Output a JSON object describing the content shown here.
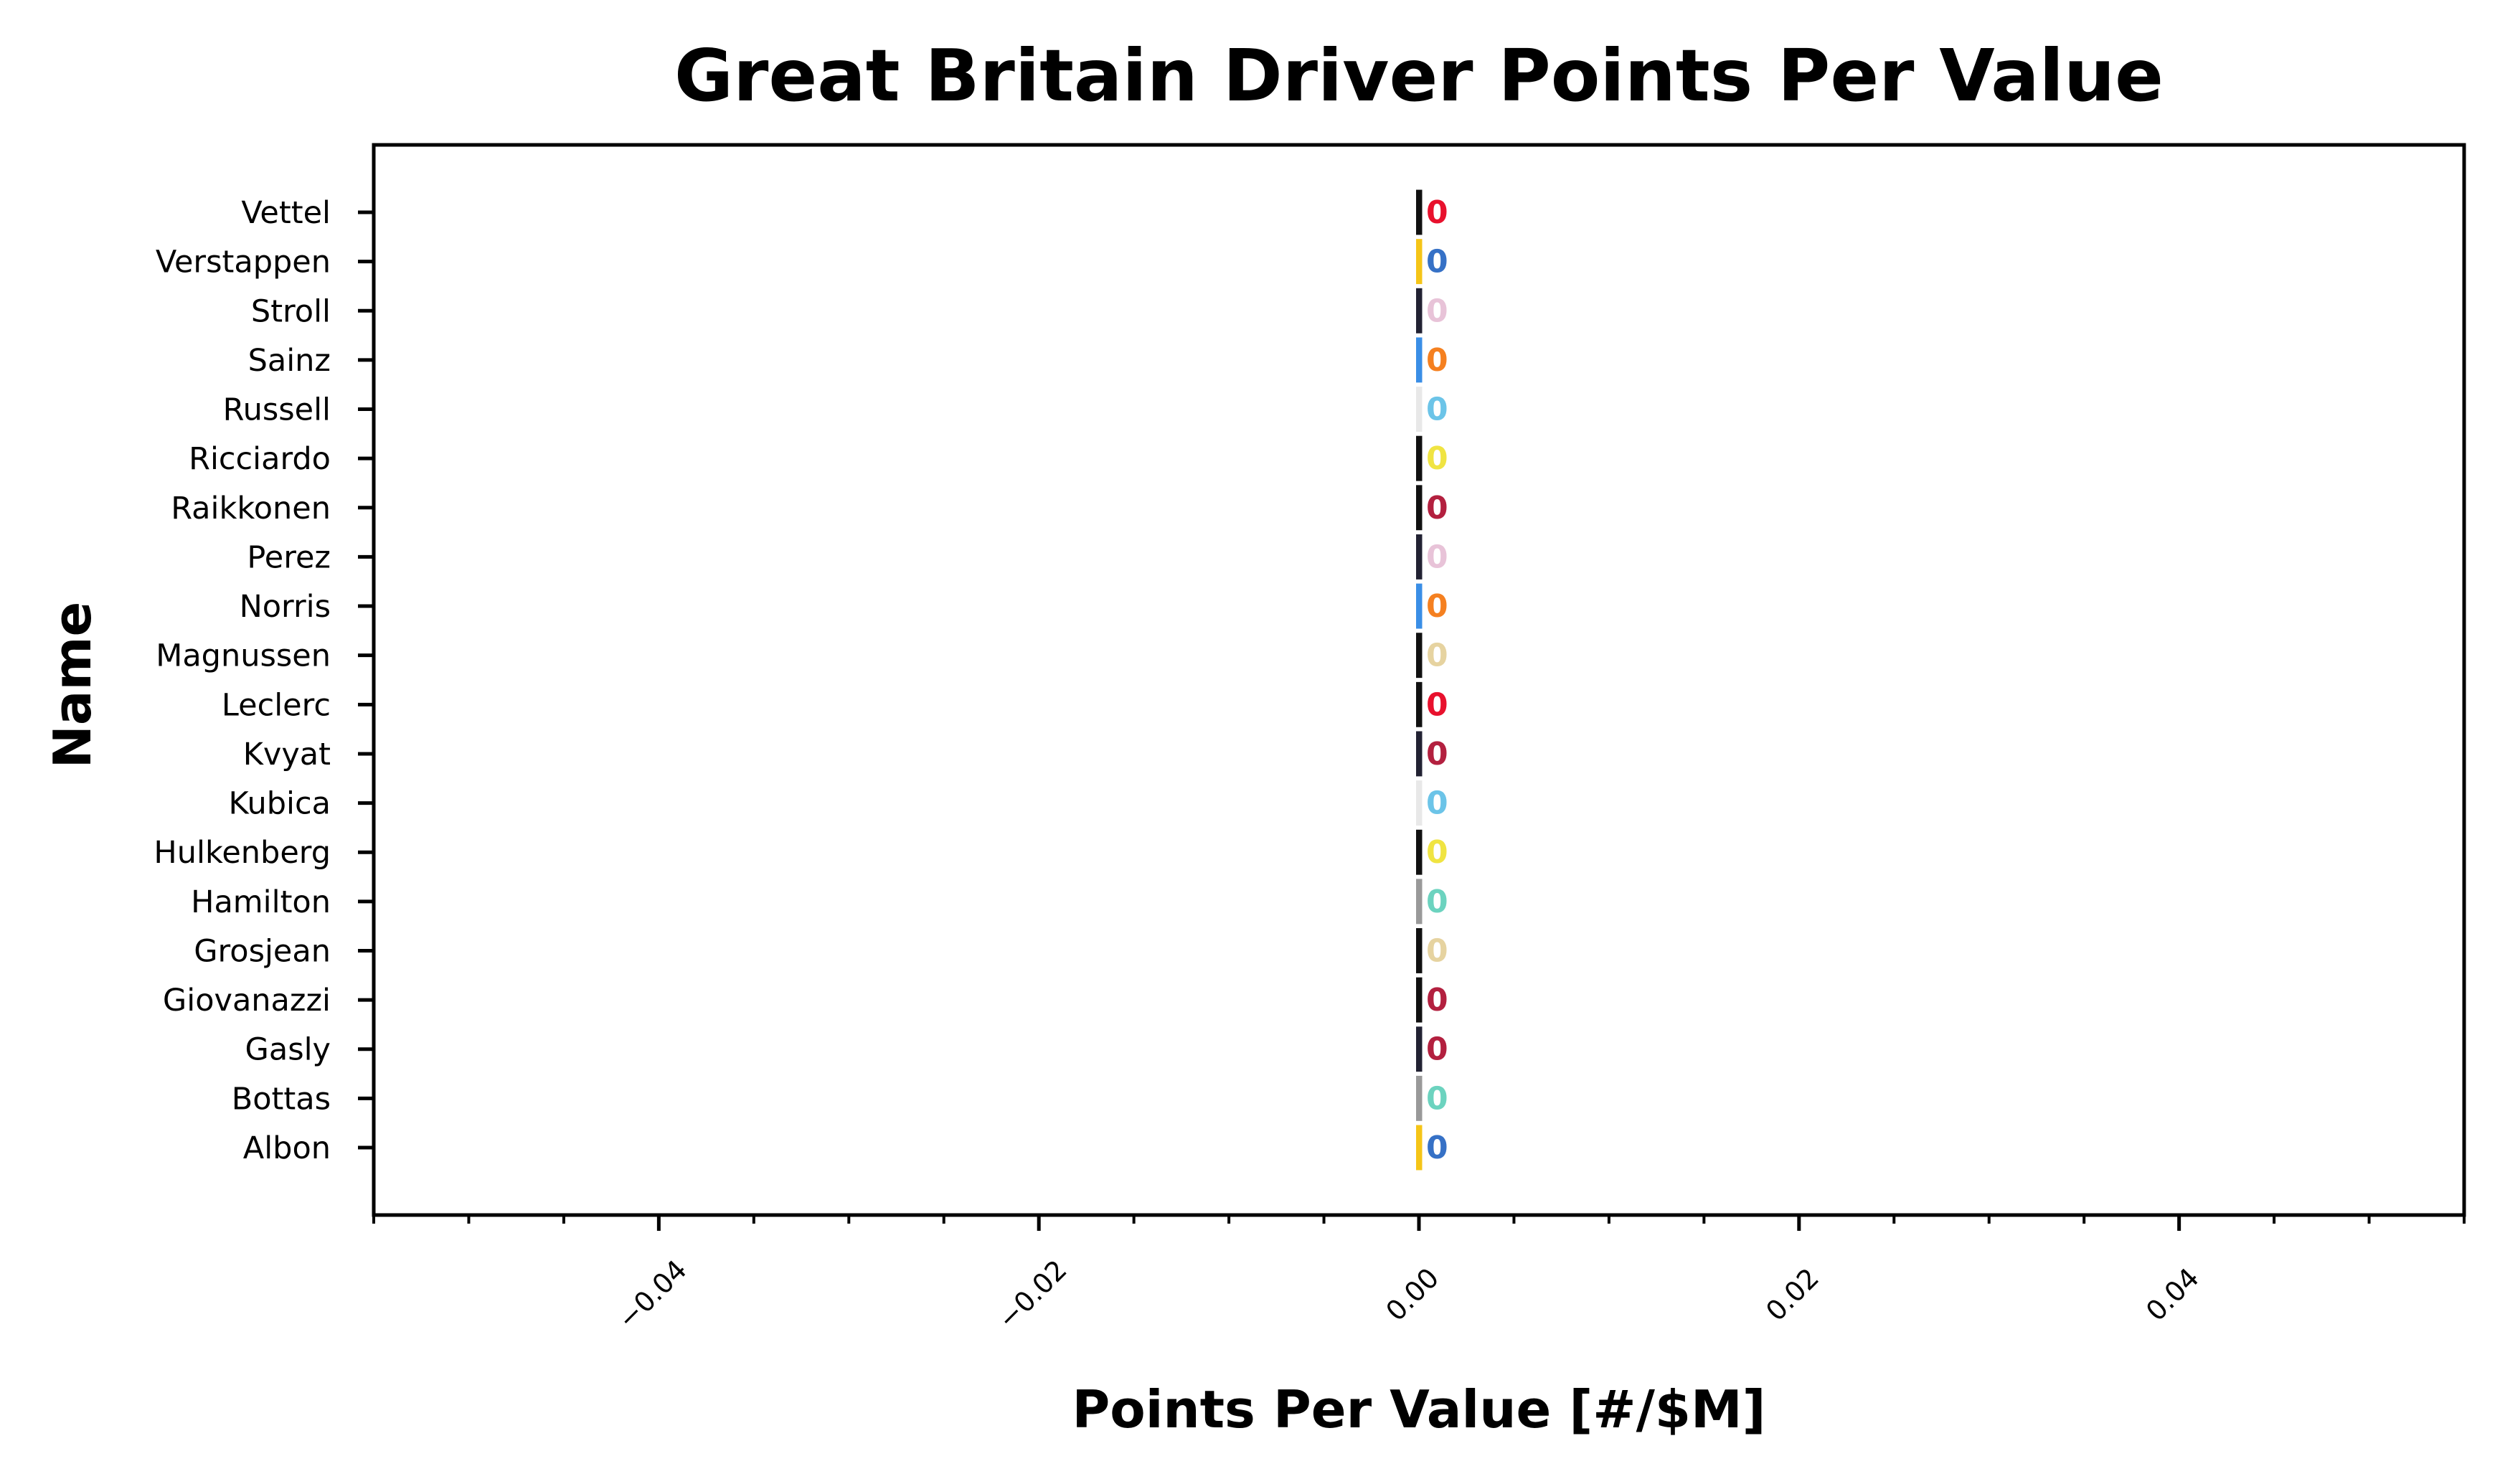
{
  "chart_data": {
    "type": "bar",
    "orientation": "horizontal",
    "title": "Great Britain Driver Points Per Value",
    "xlabel": "Points Per Value [#/$M]",
    "ylabel": "Name",
    "xlim": [
      -0.055,
      0.055
    ],
    "xticks": [
      -0.04,
      -0.02,
      0.0,
      0.02,
      0.04
    ],
    "xtick_labels": [
      "−0.04",
      "−0.02",
      "0.00",
      "0.02",
      "0.04"
    ],
    "grid": false,
    "categories": [
      "Vettel",
      "Verstappen",
      "Stroll",
      "Sainz",
      "Russell",
      "Ricciardo",
      "Raikkonen",
      "Perez",
      "Norris",
      "Magnussen",
      "Leclerc",
      "Kvyat",
      "Kubica",
      "Hulkenberg",
      "Hamilton",
      "Grosjean",
      "Giovanazzi",
      "Gasly",
      "Bottas",
      "Albon"
    ],
    "values": [
      0,
      0,
      0,
      0,
      0,
      0,
      0,
      0,
      0,
      0,
      0,
      0,
      0,
      0,
      0,
      0,
      0,
      0,
      0,
      0
    ],
    "value_labels": [
      "0",
      "0",
      "0",
      "0",
      "0",
      "0",
      "0",
      "0",
      "0",
      "0",
      "0",
      "0",
      "0",
      "0",
      "0",
      "0",
      "0",
      "0",
      "0",
      "0"
    ],
    "edge_colors": [
      "#111111",
      "#f5c518",
      "#222233",
      "#3a8ee6",
      "#e8e8e8",
      "#111111",
      "#111111",
      "#222233",
      "#3a8ee6",
      "#111111",
      "#111111",
      "#222233",
      "#e8e8e8",
      "#111111",
      "#999999",
      "#111111",
      "#111111",
      "#222233",
      "#999999",
      "#f5c518"
    ],
    "label_colors": [
      "#e8112d",
      "#3671c6",
      "#e8c3d8",
      "#f58020",
      "#6cc4e8",
      "#f0e442",
      "#b3203f",
      "#e8c3d8",
      "#f58020",
      "#e6d3a0",
      "#e8112d",
      "#b3203f",
      "#6cc4e8",
      "#f0e442",
      "#6cd3bf",
      "#e6d3a0",
      "#b3203f",
      "#b3203f",
      "#6cd3bf",
      "#3671c6"
    ]
  }
}
